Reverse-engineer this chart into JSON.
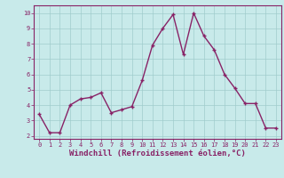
{
  "x": [
    0,
    1,
    2,
    3,
    4,
    5,
    6,
    7,
    8,
    9,
    10,
    11,
    12,
    13,
    14,
    15,
    16,
    17,
    18,
    19,
    20,
    21,
    22,
    23
  ],
  "y": [
    3.4,
    2.2,
    2.2,
    4.0,
    4.4,
    4.5,
    4.8,
    3.5,
    3.7,
    3.9,
    5.6,
    7.9,
    9.0,
    9.9,
    7.3,
    10.0,
    8.5,
    7.6,
    6.0,
    5.1,
    4.1,
    4.1,
    2.5,
    2.5
  ],
  "line_color": "#882266",
  "marker": "+",
  "marker_size": 3,
  "bg_color": "#c8eaea",
  "grid_color": "#a0cccc",
  "xlabel": "Windchill (Refroidissement éolien,°C)",
  "xlim_min": -0.5,
  "xlim_max": 23.5,
  "ylim_min": 1.8,
  "ylim_max": 10.5,
  "yticks": [
    2,
    3,
    4,
    5,
    6,
    7,
    8,
    9,
    10
  ],
  "xticks": [
    0,
    1,
    2,
    3,
    4,
    5,
    6,
    7,
    8,
    9,
    10,
    11,
    12,
    13,
    14,
    15,
    16,
    17,
    18,
    19,
    20,
    21,
    22,
    23
  ],
  "tick_color": "#882266",
  "tick_fontsize": 5.0,
  "xlabel_fontsize": 6.5,
  "spine_color": "#882266",
  "line_width": 1.0,
  "markeredgewidth": 1.0
}
